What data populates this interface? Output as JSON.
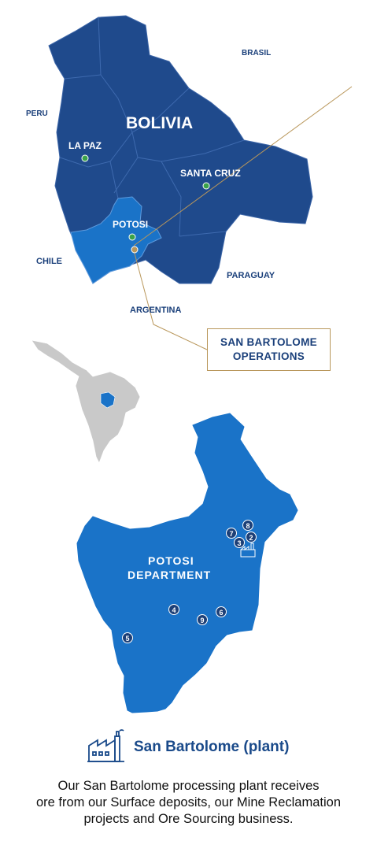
{
  "top_map": {
    "country": "BOLIVIA",
    "neighbors": {
      "brasil": "BRASIL",
      "peru": "PERU",
      "chile": "CHILE",
      "paraguay": "PARAGUAY",
      "argentina": "ARGENTINA"
    },
    "cities": {
      "la_paz": "LA PAZ",
      "santa_cruz": "SANTA CRUZ",
      "potosi": "POTOSI"
    },
    "callout": {
      "line1": "SAN BARTOLOME",
      "line2": "OPERATIONS"
    }
  },
  "department_map": {
    "title_line1": "POTOSI",
    "title_line2": "DEPARTMENT",
    "markers": [
      "8",
      "7",
      "2",
      "3",
      "4",
      "9",
      "6",
      "5"
    ]
  },
  "legend": {
    "label": "San Bartolome (plant)",
    "icon": "factory-icon"
  },
  "caption": {
    "line1": "Our San Bartolome processing plant receives",
    "line2": "ore from our Surface deposits, our Mine Reclamation",
    "line3": "projects and Ore Sourcing business."
  },
  "colors": {
    "bolivia": "#1f4a8c",
    "potosi": "#1a73c8",
    "callout_line": "#b9975b",
    "continent": "#c9c9c9",
    "city_dot": "#3aa24a",
    "marker": "#1c3f77"
  }
}
